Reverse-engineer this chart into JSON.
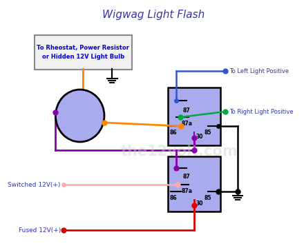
{
  "title": "Wigwag Light Flash",
  "title_color": "#3333aa",
  "title_fontsize": 11,
  "bg_color": "#ffffff",
  "relay_box_color": "#aaaaee",
  "box_text": "To Rheostat, Power Resistor\nor Hidden 12V Light Bulb",
  "box_text_color": "#0000cc",
  "label_left": "To Left Light Positive",
  "label_right": "To Right Light Positive",
  "label_switched": "Switched 12V(+)",
  "label_fused": "Fused 12V(+)",
  "label_color": "#3333aa",
  "watermark": "the12volt.com",
  "orange": "#ff8800",
  "purple": "#8800aa",
  "blue": "#3355cc",
  "green": "#00aa44",
  "red": "#dd0000",
  "pink": "#ffaaaa",
  "black": "#000000",
  "gray": "#888888"
}
